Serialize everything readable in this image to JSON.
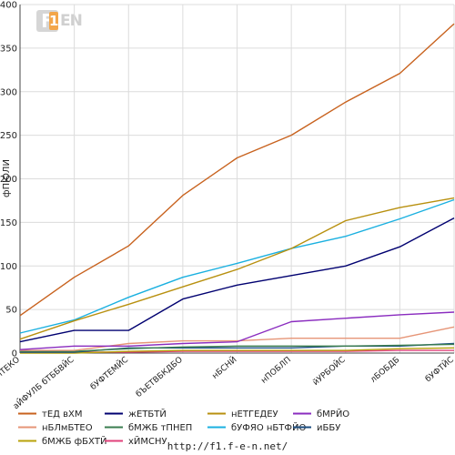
{
  "logo": {
    "f": "F",
    "one": "1",
    "en": "EN"
  },
  "footer_url": "http://f1.f-e-n.net/",
  "chart_data": {
    "type": "line",
    "ylabel": "фПЮЛИ",
    "xlabel": "",
    "ylim": [
      0,
      400
    ],
    "yticks": [
      0,
      50,
      100,
      150,
      200,
      250,
      300,
      350,
      400
    ],
    "grid": true,
    "legend_position": "bottom",
    "categories": [
      "вВИТЕКО",
      "аЙФУЛБ бТББВЙС",
      "бУФТЕМЙС",
      "бЪЕТВБКДБО",
      "нБСНЙ",
      "нПОБЛП",
      "йУРБОЙС",
      "лБОБДБ",
      "бУФТЙС"
    ],
    "series": [
      {
        "name": "тЕД вХМ",
        "color": "#c8621e",
        "values": [
          43,
          87,
          123,
          181,
          224,
          250,
          288,
          321,
          378
        ]
      },
      {
        "name": "жЕТБТЙ",
        "color": "#000070",
        "values": [
          13,
          26,
          26,
          62,
          78,
          89,
          100,
          122,
          155
        ]
      },
      {
        "name": "нЕТГЕДЕУ",
        "color": "#b8900f",
        "values": [
          16,
          37,
          56,
          76,
          96,
          120,
          152,
          167,
          178
        ]
      },
      {
        "name": "бМРЙО",
        "color": "#8a2cbf",
        "values": [
          4,
          8,
          8,
          11,
          13,
          36,
          40,
          44,
          47
        ]
      },
      {
        "name": "нБЛмБТЕО",
        "color": "#e69577",
        "values": [
          3,
          3,
          11,
          14,
          14,
          17,
          17,
          17,
          30
        ]
      },
      {
        "name": "бМЖБ тПНЕП",
        "color": "#3a7d4f",
        "values": [
          2,
          2,
          5,
          7,
          8,
          8,
          8,
          9,
          10
        ]
      },
      {
        "name": "бУФЯО нБТФЙО",
        "color": "#1ab0e0",
        "values": [
          23,
          38,
          64,
          87,
          103,
          120,
          134,
          154,
          176
        ]
      },
      {
        "name": "иББУ",
        "color": "#1d4e80",
        "values": [
          1,
          1,
          6,
          6,
          6,
          6,
          8,
          8,
          11
        ]
      },
      {
        "name": "бМЖБ фБХТЙ",
        "color": "#b8a20a",
        "values": [
          0,
          0,
          2,
          3,
          3,
          3,
          3,
          5,
          6
        ]
      },
      {
        "name": "хЙМСНУ",
        "color": "#e0407a",
        "values": [
          1,
          1,
          1,
          2,
          2,
          2,
          2,
          3,
          3
        ]
      }
    ]
  }
}
